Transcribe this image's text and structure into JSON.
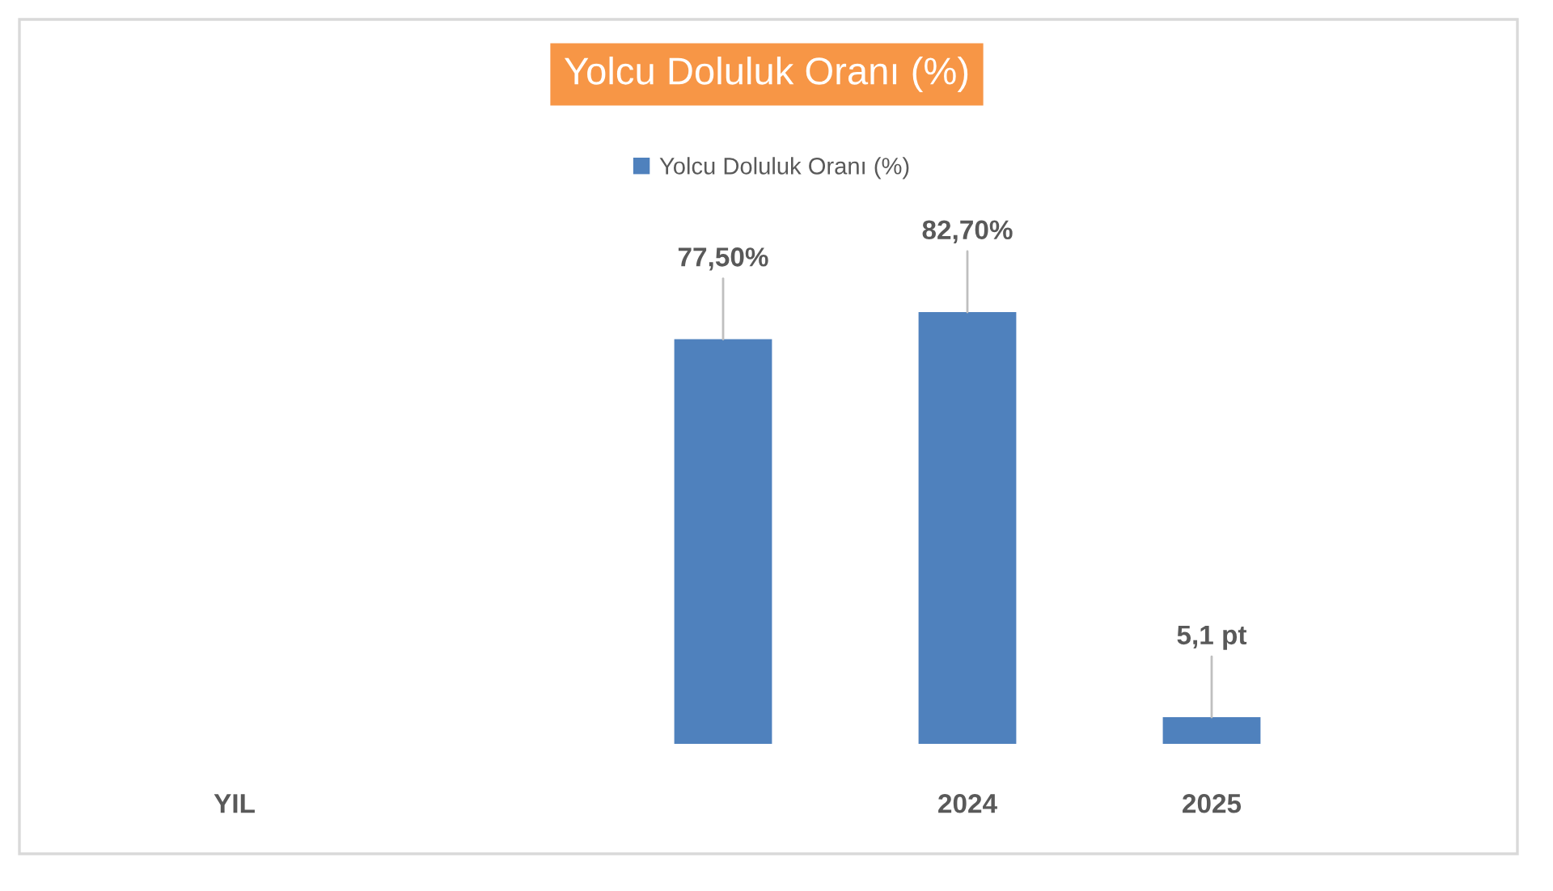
{
  "chart_data": {
    "type": "bar",
    "title": "Yolcu Doluluk Oranı (%)",
    "categories": [
      "YIL",
      null,
      null,
      "2024",
      "2025"
    ],
    "series": [
      {
        "name": "Yolcu Doluluk Oranı (%)",
        "color": "#4f81bd",
        "values": [
          null,
          null,
          77.5,
          82.7,
          5.1
        ],
        "value_labels": [
          null,
          null,
          "77,50%",
          "82,70%",
          "5,1 pt"
        ]
      }
    ],
    "legend": "top"
  }
}
